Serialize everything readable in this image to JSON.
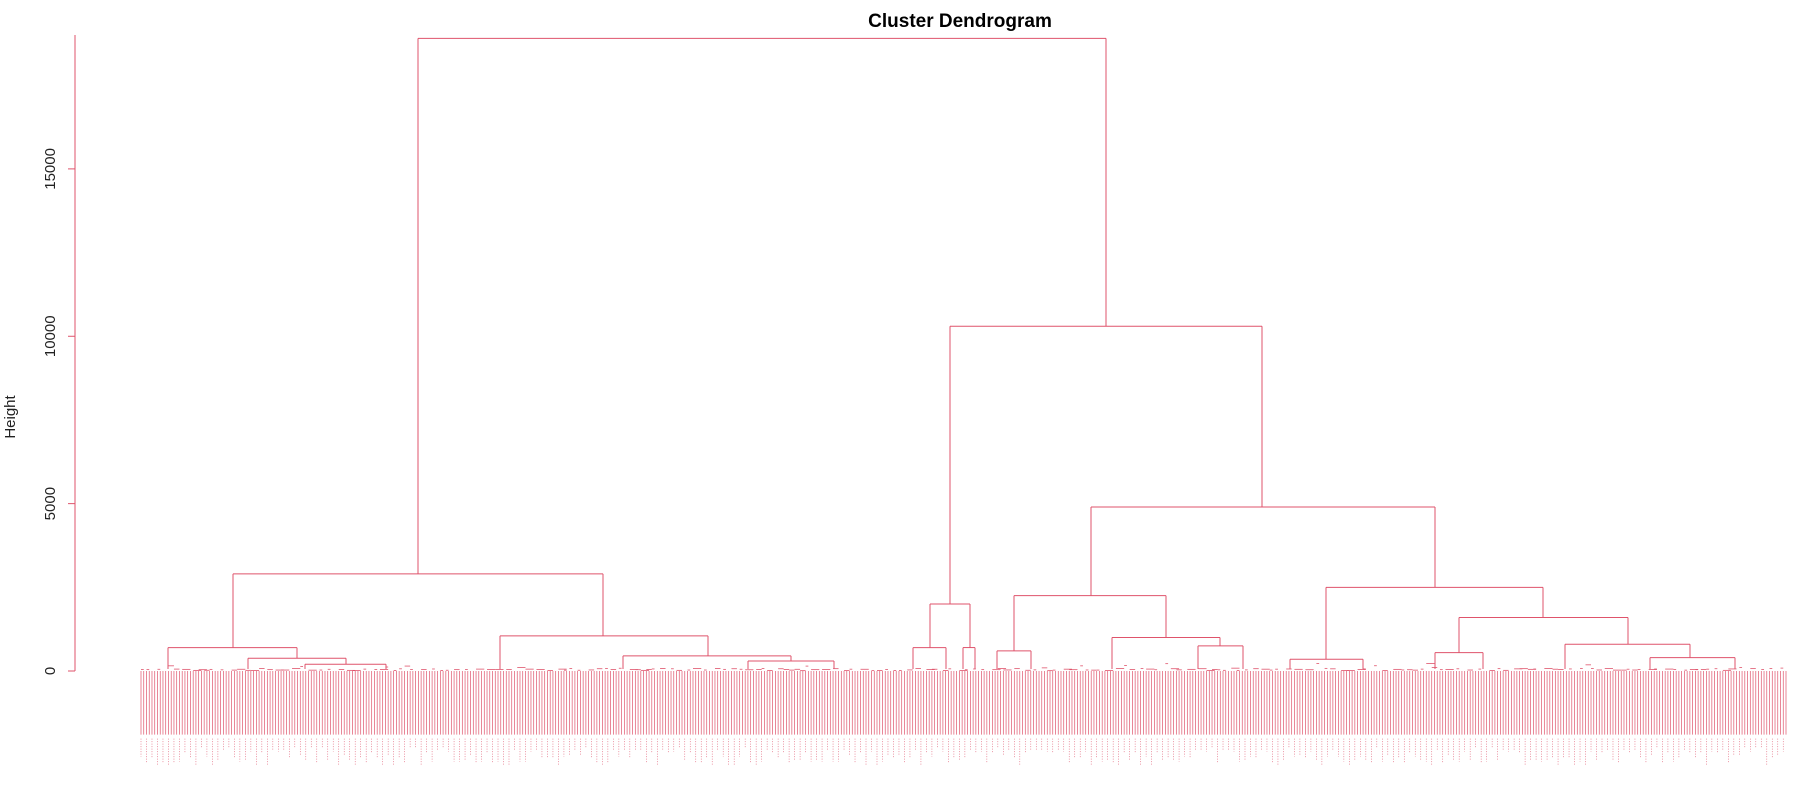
{
  "chart_data": {
    "type": "dendrogram",
    "title": "Cluster Dendrogram",
    "ylabel": "Height",
    "xlabel": "",
    "ylim": [
      0,
      19000
    ],
    "y_ticks": [
      0,
      5000,
      10000,
      15000
    ],
    "line_color": "#DF536B",
    "grid": false,
    "leaf_count": 600,
    "leaf_hang": -1900,
    "merges": [
      {
        "id": "root",
        "height": 18900,
        "children": [
          "A",
          "B"
        ]
      },
      {
        "id": "A",
        "height": 2900,
        "children": [
          "A1",
          "A2"
        ]
      },
      {
        "id": "A1",
        "height": 700,
        "children": [
          "A1a",
          "A1b"
        ]
      },
      {
        "id": "A1b",
        "height": 380,
        "children": [
          "A1b1",
          "A1b2"
        ]
      },
      {
        "id": "A1b2",
        "height": 200,
        "children": [
          "A1b2a",
          "A1b2b"
        ]
      },
      {
        "id": "A2",
        "height": 1050,
        "children": [
          "A2a",
          "A2b"
        ]
      },
      {
        "id": "A2b",
        "height": 450,
        "children": [
          "A2b1",
          "A2b2"
        ]
      },
      {
        "id": "A2b2",
        "height": 300,
        "children": [
          "A2b2a",
          "A2b2b"
        ]
      },
      {
        "id": "B",
        "height": 10300,
        "children": [
          "B1",
          "B2"
        ]
      },
      {
        "id": "B1",
        "height": 2000,
        "children": [
          "B1a",
          "B1b"
        ]
      },
      {
        "id": "B1a",
        "height": 700,
        "children": [
          "B1a1",
          "B1a2"
        ]
      },
      {
        "id": "B1b",
        "height": 700,
        "children": [
          "B1b1",
          "B1b2"
        ]
      },
      {
        "id": "B2",
        "height": 4900,
        "children": [
          "B2a",
          "B2b"
        ]
      },
      {
        "id": "B2a",
        "height": 2250,
        "children": [
          "B2a1",
          "B2a2"
        ]
      },
      {
        "id": "B2a1",
        "height": 600,
        "children": [
          "B2a1a",
          "B2a1b"
        ]
      },
      {
        "id": "B2a2",
        "height": 1000,
        "children": [
          "B2a2a",
          "B2a2b"
        ]
      },
      {
        "id": "B2a2b",
        "height": 750,
        "children": [
          "B2a2b1",
          "B2a2b2"
        ]
      },
      {
        "id": "B2b",
        "height": 2500,
        "children": [
          "B2b1",
          "B2b2"
        ]
      },
      {
        "id": "B2b1",
        "height": 350,
        "children": [
          "B2b1a",
          "B2b1b"
        ]
      },
      {
        "id": "B2b2",
        "height": 1600,
        "children": [
          "B2b2a",
          "B2b2b"
        ]
      },
      {
        "id": "B2b2a",
        "height": 550,
        "children": [
          "B2b2a1",
          "B2b2a2"
        ]
      },
      {
        "id": "B2b2b",
        "height": 800,
        "children": [
          "B2b2b1",
          "B2b2b2"
        ]
      },
      {
        "id": "B2b2b2",
        "height": 400,
        "children": [
          "B2b2b2a",
          "B2b2b2b"
        ]
      }
    ]
  }
}
